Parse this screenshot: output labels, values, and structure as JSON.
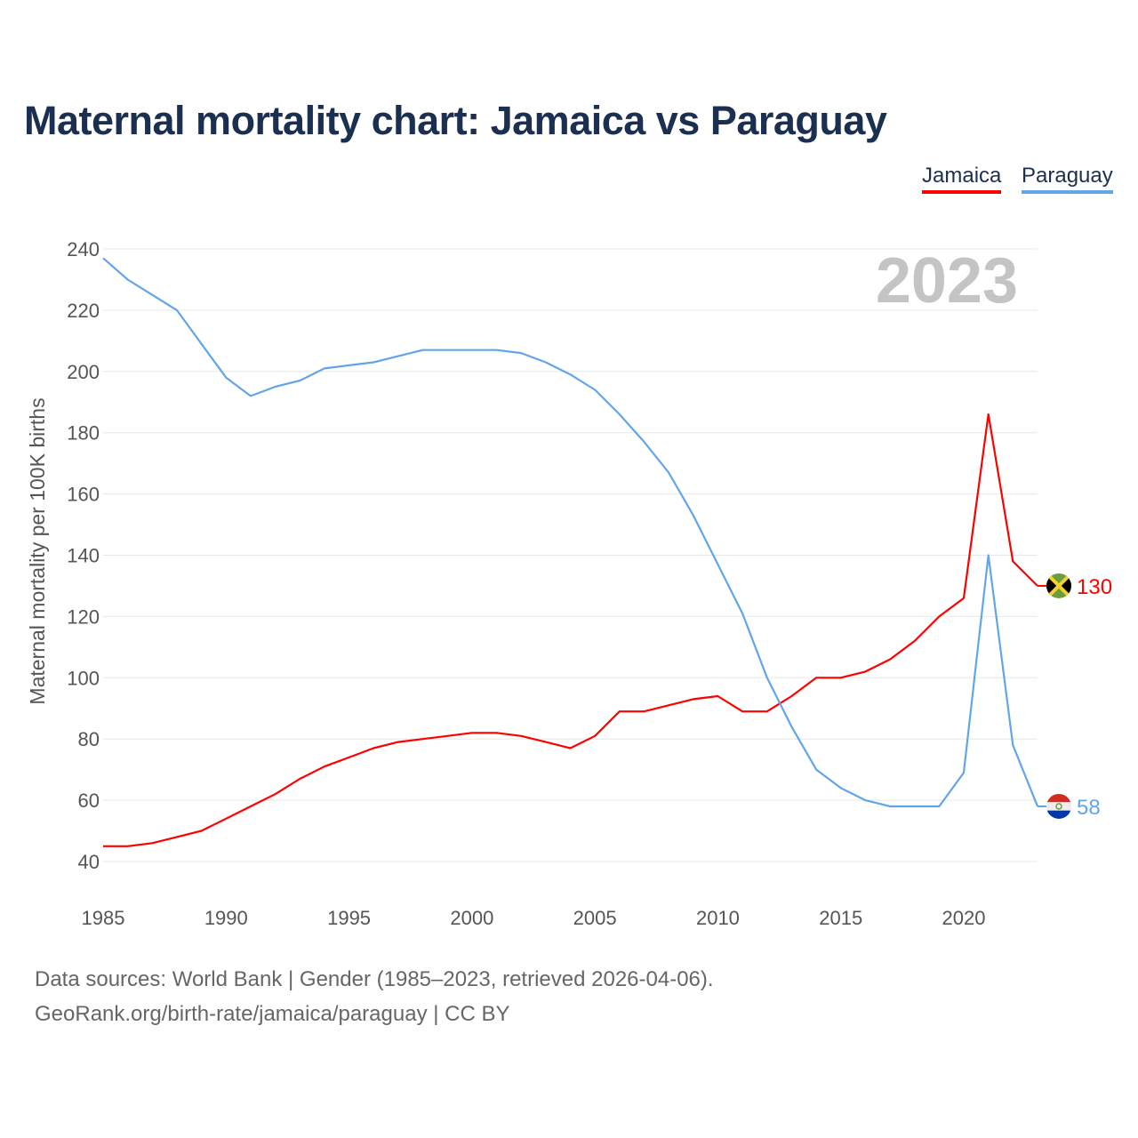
{
  "chart_data": {
    "type": "line",
    "title": "Maternal mortality chart: Jamaica vs Paraguay",
    "ylabel": "Maternal mortality per 100K births",
    "xlabel": "",
    "year_watermark": "2023",
    "ylim": [
      40,
      240
    ],
    "xlim": [
      1985,
      2023
    ],
    "yticks": [
      40,
      60,
      80,
      100,
      120,
      140,
      160,
      180,
      200,
      220,
      240
    ],
    "xticks": [
      1985,
      1990,
      1995,
      2000,
      2005,
      2010,
      2015,
      2020
    ],
    "grid": true,
    "legend_position": "top-right",
    "x": [
      1985,
      1986,
      1987,
      1988,
      1989,
      1990,
      1991,
      1992,
      1993,
      1994,
      1995,
      1996,
      1997,
      1998,
      1999,
      2000,
      2001,
      2002,
      2003,
      2004,
      2005,
      2006,
      2007,
      2008,
      2009,
      2010,
      2011,
      2012,
      2013,
      2014,
      2015,
      2016,
      2017,
      2018,
      2019,
      2020,
      2021,
      2022,
      2023
    ],
    "series": [
      {
        "name": "Jamaica",
        "color": "#ff0000",
        "end_label": "130",
        "values": [
          45,
          45,
          46,
          48,
          50,
          54,
          58,
          62,
          67,
          71,
          74,
          77,
          79,
          80,
          81,
          82,
          82,
          81,
          79,
          77,
          81,
          89,
          89,
          91,
          93,
          94,
          89,
          89,
          94,
          100,
          100,
          102,
          106,
          112,
          120,
          126,
          186,
          138,
          130
        ]
      },
      {
        "name": "Paraguay",
        "color": "#62a5ea",
        "end_label": "58",
        "values": [
          237,
          230,
          225,
          220,
          209,
          198,
          192,
          195,
          197,
          201,
          202,
          203,
          205,
          207,
          207,
          207,
          207,
          206,
          203,
          199,
          194,
          186,
          177,
          167,
          153,
          137,
          121,
          100,
          84,
          70,
          64,
          60,
          58,
          58,
          58,
          69,
          140,
          78,
          58
        ]
      }
    ]
  },
  "footer": {
    "line1": "Data sources: World Bank | Gender (1985–2023, retrieved 2026-04-06).",
    "line2": "GeoRank.org/birth-rate/jamaica/paraguay | CC BY"
  }
}
